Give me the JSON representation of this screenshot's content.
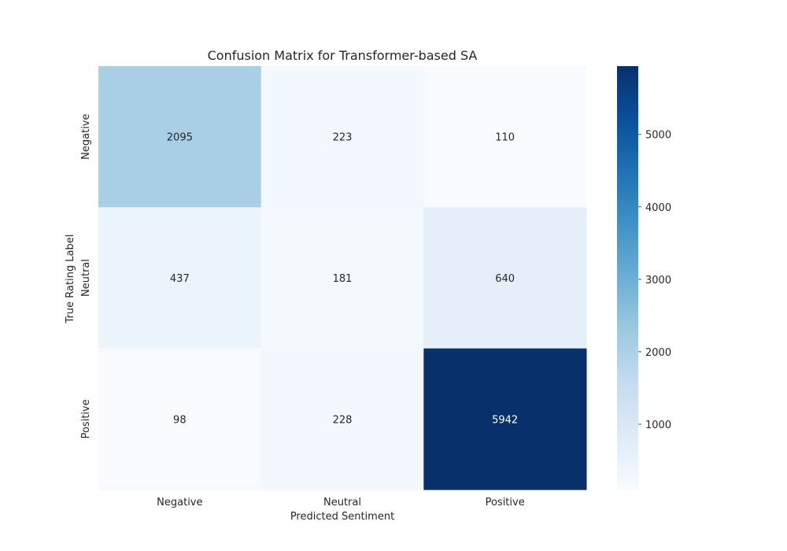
{
  "chart_data": {
    "type": "heatmap",
    "title": "Confusion Matrix for Transformer-based SA",
    "xlabel": "Predicted Sentiment",
    "ylabel": "True Rating Label",
    "x_categories": [
      "Negative",
      "Neutral",
      "Positive"
    ],
    "y_categories": [
      "Negative",
      "Neutral",
      "Positive"
    ],
    "values": [
      [
        2095,
        223,
        110
      ],
      [
        437,
        181,
        640
      ],
      [
        98,
        228,
        5942
      ]
    ],
    "colormap": "Blues",
    "colorbar": {
      "range": [
        98,
        5942
      ],
      "ticks": [
        1000,
        2000,
        3000,
        4000,
        5000
      ]
    }
  }
}
